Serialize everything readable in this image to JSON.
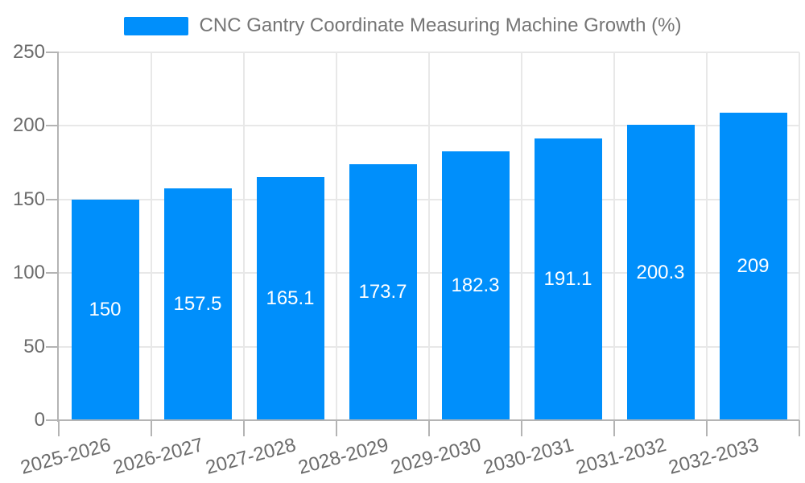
{
  "legend": {
    "label": "CNC Gantry Coordinate Measuring Machine Growth (%)",
    "swatch_color": "#008FFB"
  },
  "chart_data": {
    "type": "bar",
    "title": "",
    "xlabel": "",
    "ylabel": "",
    "categories": [
      "2025-2026",
      "2026-2027",
      "2027-2028",
      "2028-2029",
      "2029-2030",
      "2030-2031",
      "2031-2032",
      "2032-2033"
    ],
    "series": [
      {
        "name": "CNC Gantry Coordinate Measuring Machine Growth (%)",
        "values": [
          150,
          157.5,
          165.1,
          173.7,
          182.3,
          191.1,
          200.3,
          209
        ]
      }
    ],
    "data_labels": [
      "150",
      "157.5",
      "165.1",
      "173.7",
      "182.3",
      "191.1",
      "200.3",
      "209"
    ],
    "ylim": [
      0,
      250
    ],
    "y_ticks": [
      0,
      50,
      100,
      150,
      200,
      250
    ],
    "y_tick_labels": [
      "0",
      "50",
      "100",
      "150",
      "200",
      "250"
    ],
    "grid": true,
    "legend_position": "top",
    "bar_color": "#008FFB",
    "data_label_color": "#ffffff"
  },
  "colors": {
    "bar": "#008FFB",
    "grid": "#e8e8e8",
    "axis": "#b4b4b4",
    "axis_text": "#6b6b6b",
    "legend_text": "#757575",
    "background": "#ffffff"
  }
}
